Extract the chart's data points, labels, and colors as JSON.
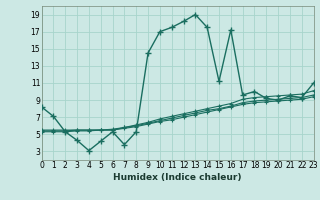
{
  "xlabel": "Humidex (Indice chaleur)",
  "bg_color": "#cce8e4",
  "grid_color": "#a8d4cc",
  "line_color": "#1a6e60",
  "line1_x": [
    0,
    1,
    2,
    3,
    4,
    5,
    6,
    7,
    8,
    9,
    10,
    11,
    12,
    13,
    14,
    15,
    16,
    17,
    18,
    19,
    20,
    21,
    22,
    23
  ],
  "line1_y": [
    8.2,
    7.1,
    5.3,
    4.3,
    3.1,
    4.2,
    5.3,
    3.8,
    5.3,
    14.5,
    17.0,
    17.5,
    18.2,
    19.0,
    17.5,
    11.2,
    17.2,
    9.6,
    10.0,
    9.2,
    9.0,
    9.5,
    9.3,
    11.0
  ],
  "line2_x": [
    0,
    1,
    2,
    3,
    4,
    5,
    6,
    7,
    8,
    9,
    10,
    11,
    12,
    13,
    14,
    15,
    16,
    17,
    18,
    19,
    20,
    21,
    22,
    23
  ],
  "line2_y": [
    5.5,
    5.5,
    5.5,
    5.5,
    5.5,
    5.5,
    5.5,
    5.8,
    6.1,
    6.4,
    6.8,
    7.1,
    7.4,
    7.7,
    8.0,
    8.3,
    8.6,
    9.1,
    9.3,
    9.4,
    9.5,
    9.6,
    9.7,
    10.1
  ],
  "line3_x": [
    0,
    1,
    2,
    3,
    4,
    5,
    6,
    7,
    8,
    9,
    10,
    11,
    12,
    13,
    14,
    15,
    16,
    17,
    18,
    19,
    20,
    21,
    22,
    23
  ],
  "line3_y": [
    5.4,
    5.4,
    5.4,
    5.5,
    5.5,
    5.5,
    5.6,
    5.8,
    6.0,
    6.3,
    6.6,
    6.9,
    7.2,
    7.5,
    7.8,
    8.0,
    8.3,
    8.7,
    8.9,
    9.0,
    9.1,
    9.2,
    9.3,
    9.6
  ],
  "line4_x": [
    0,
    1,
    2,
    3,
    4,
    5,
    6,
    7,
    8,
    9,
    10,
    11,
    12,
    13,
    14,
    15,
    16,
    17,
    18,
    19,
    20,
    21,
    22,
    23
  ],
  "line4_y": [
    5.3,
    5.3,
    5.3,
    5.4,
    5.4,
    5.5,
    5.5,
    5.7,
    5.9,
    6.2,
    6.5,
    6.7,
    7.0,
    7.3,
    7.6,
    7.9,
    8.2,
    8.5,
    8.7,
    8.8,
    8.9,
    9.0,
    9.1,
    9.4
  ],
  "xlim": [
    0,
    23
  ],
  "ylim": [
    2,
    20
  ],
  "yticks": [
    3,
    5,
    7,
    9,
    11,
    13,
    15,
    17,
    19
  ],
  "xticks": [
    0,
    1,
    2,
    3,
    4,
    5,
    6,
    7,
    8,
    9,
    10,
    11,
    12,
    13,
    14,
    15,
    16,
    17,
    18,
    19,
    20,
    21,
    22,
    23
  ],
  "xlabel_fontsize": 6.5,
  "tick_fontsize": 5.5
}
